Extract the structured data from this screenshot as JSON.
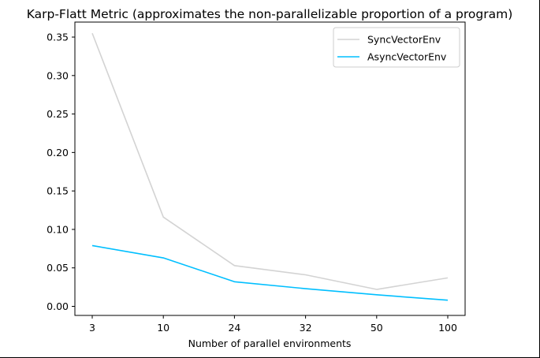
{
  "chart_data": {
    "type": "line",
    "title": "Karp-Flatt Metric (approximates the non-parallelizable proportion of a program)",
    "xlabel": "Number of parallel environments",
    "ylabel": "",
    "categories": [
      "3",
      "10",
      "24",
      "32",
      "50",
      "100"
    ],
    "ylim": [
      -0.0118,
      0.3695
    ],
    "yticks": [
      "0.00",
      "0.05",
      "0.10",
      "0.15",
      "0.20",
      "0.25",
      "0.30",
      "0.35"
    ],
    "grid": false,
    "legend": "top-right",
    "series": [
      {
        "name": "SyncVectorEnv",
        "color": "#d3d3d3",
        "values": [
          0.355,
          0.116,
          0.053,
          0.041,
          0.022,
          0.037
        ]
      },
      {
        "name": "AsyncVectorEnv",
        "color": "#00bfff",
        "values": [
          0.079,
          0.063,
          0.032,
          0.023,
          0.015,
          0.008
        ]
      }
    ]
  }
}
